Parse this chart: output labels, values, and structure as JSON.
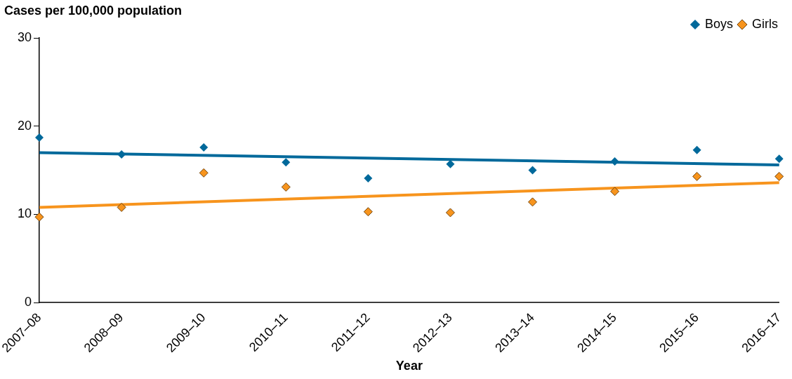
{
  "chart_data": {
    "type": "scatter",
    "ylabel": "Cases per 100,000 population",
    "xlabel": "Year",
    "categories": [
      "2007–08",
      "2008–09",
      "2009–10",
      "2010–11",
      "2011–12",
      "2012–13",
      "2013–14",
      "2014–15",
      "2015–16",
      "2016–17"
    ],
    "series": [
      {
        "name": "Boys",
        "color": "#00699b",
        "values": [
          18.7,
          16.8,
          17.6,
          15.9,
          14.1,
          15.7,
          15.0,
          16.0,
          17.3,
          16.3
        ]
      },
      {
        "name": "Girls",
        "color": "#f7941d",
        "values": [
          9.7,
          10.8,
          14.7,
          13.1,
          10.3,
          10.2,
          11.4,
          12.6,
          14.3,
          14.3
        ]
      },
      {
        "type": "line",
        "color": "#00699b",
        "x": [
          "2007–08",
          "2016–17"
        ],
        "values": [
          17.0,
          15.6
        ],
        "marker": "none",
        "line_style": "solid"
      },
      {
        "type": "line",
        "color": "#f7941d",
        "x": [
          "2007–08",
          "2016–17"
        ],
        "values": [
          10.8,
          13.6
        ],
        "marker": "none",
        "line_style": "solid"
      }
    ],
    "ylim": [
      0,
      30
    ],
    "yticks": [
      0,
      10,
      20,
      30
    ],
    "grid": false,
    "legend": "top right",
    "marker": "diamond"
  }
}
